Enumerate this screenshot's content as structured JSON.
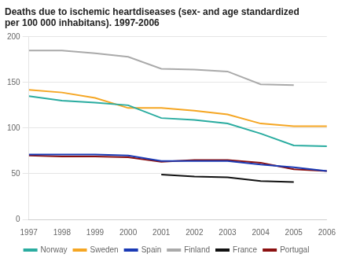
{
  "chart_data": {
    "type": "line",
    "title": "Deaths due to ischemic heartdiseases (sex- and age standardized\nper 100 000 inhabitans). 1997-2006",
    "x": [
      1997,
      1998,
      1999,
      2000,
      2001,
      2002,
      2003,
      2004,
      2005,
      2006
    ],
    "series": [
      {
        "name": "Norway",
        "color": "#2AACA0",
        "values": [
          135,
          130,
          128,
          125,
          111,
          109,
          105,
          94,
          81,
          80
        ]
      },
      {
        "name": "Sweden",
        "color": "#F5A623",
        "values": [
          142,
          139,
          133,
          122,
          122,
          119,
          115,
          105,
          102,
          102
        ]
      },
      {
        "name": "Spain",
        "color": "#1A3AB5",
        "values": [
          71,
          71,
          71,
          70,
          64,
          64,
          64,
          60,
          57,
          53
        ]
      },
      {
        "name": "Finland",
        "color": "#AAAAAA",
        "values": [
          185,
          185,
          182,
          178,
          165,
          164,
          162,
          148,
          147,
          null
        ]
      },
      {
        "name": "France",
        "color": "#111111",
        "values": [
          null,
          null,
          null,
          null,
          49,
          47,
          46,
          42,
          41,
          null
        ]
      },
      {
        "name": "Portugal",
        "color": "#8B1010",
        "values": [
          70,
          69,
          69,
          68,
          63,
          65,
          65,
          62,
          55,
          53
        ]
      }
    ],
    "xlim": [
      1997,
      2006
    ],
    "xticks": [
      1997,
      1998,
      1999,
      2000,
      2001,
      2002,
      2003,
      2004,
      2005,
      2006
    ],
    "ylim": [
      0,
      200
    ],
    "yticks": [
      0,
      50,
      100,
      150,
      200
    ],
    "grid": "y",
    "legend": "bottom"
  }
}
